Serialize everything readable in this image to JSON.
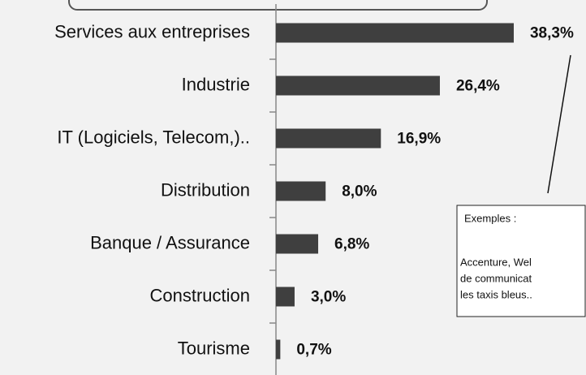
{
  "chart_data": {
    "type": "barh",
    "categories": [
      "Services aux entreprises",
      "Industrie",
      "IT (Logiciels, Telecom,)..",
      "Distribution",
      "Banque / Assurance",
      "Construction",
      "Tourisme"
    ],
    "values": [
      38.3,
      26.4,
      16.9,
      8.0,
      6.8,
      3.0,
      0.7
    ],
    "value_labels": [
      "38,3%",
      "26,4%",
      "16,9%",
      "8,0%",
      "6,8%",
      "3,0%",
      "0,7%"
    ],
    "color": "#3f3f3f",
    "xlim": [
      0,
      40
    ],
    "annotation": [
      "Exemples :",
      "Accenture, Wel",
      "de communicat",
      "les taxis bleus.."
    ]
  }
}
